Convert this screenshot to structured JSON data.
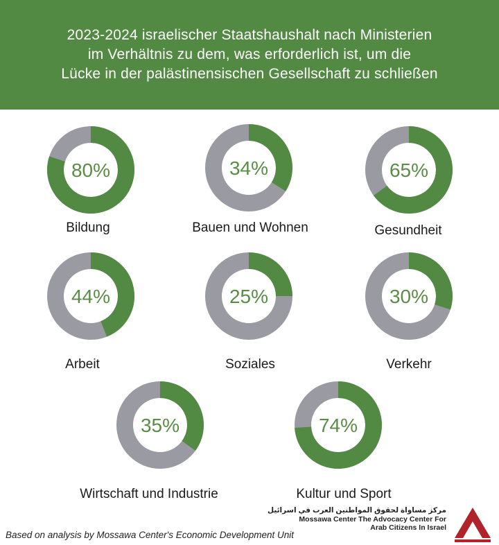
{
  "header": {
    "title_lines": [
      "2023-2024 israelischer Staatshaushalt nach Ministerien",
      "im Verhältnis zu dem, was erforderlich ist, um die",
      "Lücke in der palästinensischen Gesellschaft zu schließen"
    ]
  },
  "colors": {
    "header": "#538a43",
    "fill": "#538a43",
    "remainder": "#9a9aa2",
    "percent_text": "#5b8c46"
  },
  "chart_data": {
    "type": "pie",
    "variant": "donut",
    "title": "2023-2024 israelischer Staatshaushalt nach Ministerien im Verhältnis zu dem, was erforderlich ist, um die Lücke in der palästinensischen Gesellschaft zu schließen",
    "categories": [
      "Bildung",
      "Bauen und Wohnen",
      "Gesundheit",
      "Arbeit",
      "Soziales",
      "Verkehr",
      "Wirtschaft und Industrie",
      "Kultur und Sport"
    ],
    "values": [
      80,
      34,
      65,
      44,
      25,
      30,
      35,
      74
    ],
    "value_labels": [
      "80%",
      "34%",
      "65%",
      "44%",
      "25%",
      "30%",
      "35%",
      "74%"
    ],
    "unit": "%"
  },
  "footer": {
    "note": "Based on analysis by Mossawa Center's Economic Development Unit",
    "logo_arabic": "مركز مساواة لحقوق المواطنين العرب في اسرائيل",
    "logo_english_lines": [
      "Mossawa Center The Advocacy Center For",
      "Arab Citizens In Israel"
    ]
  }
}
